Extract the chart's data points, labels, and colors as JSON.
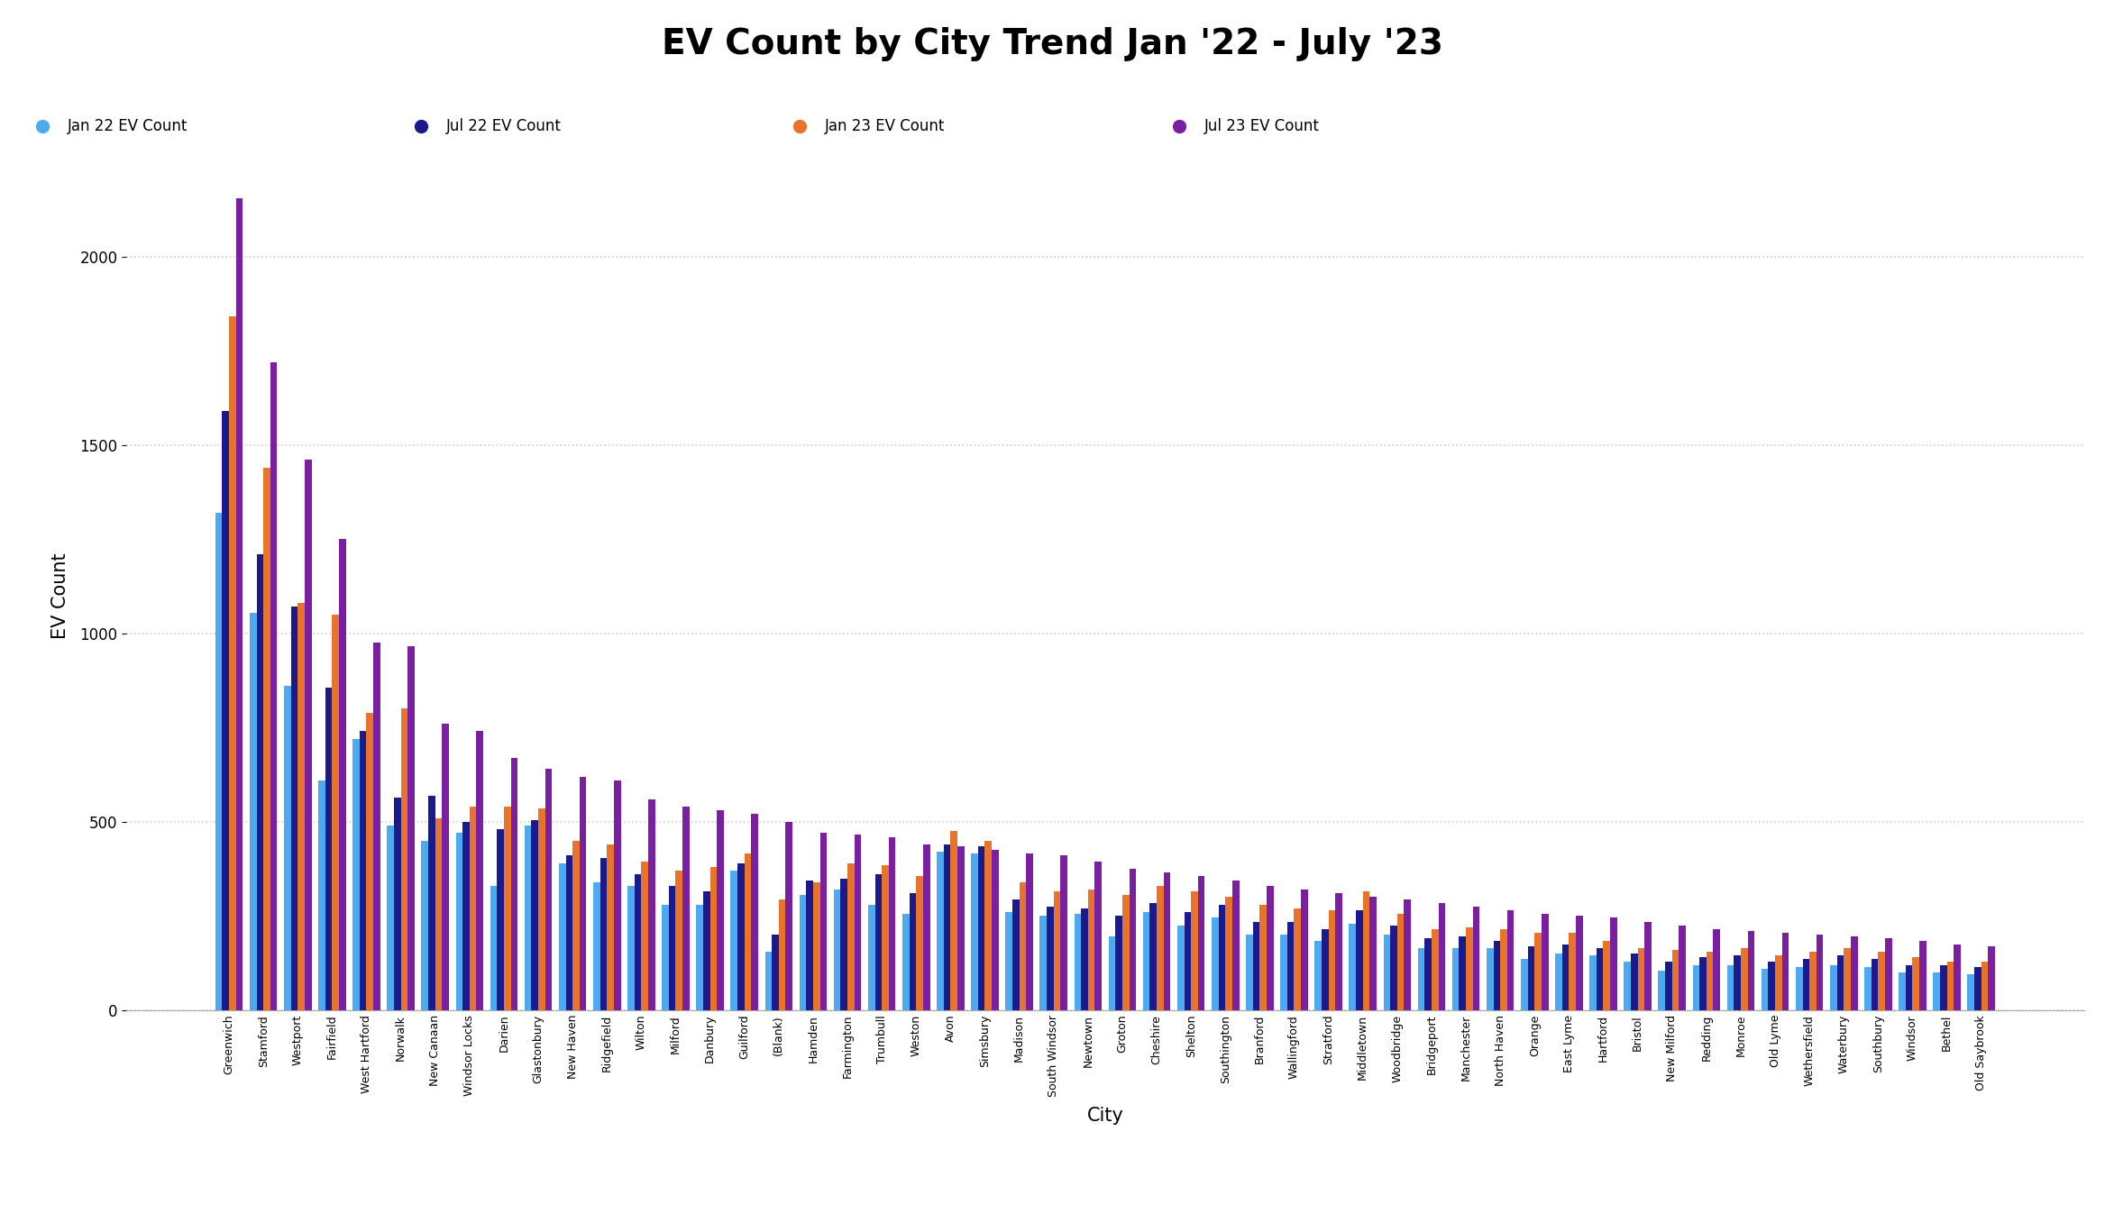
{
  "title": "EV Count by City Trend Jan '22 - July '23",
  "xlabel": "City",
  "ylabel": "EV Count",
  "title_bg_color": "#7EC8E3",
  "bar_colors": [
    "#4DAAEE",
    "#1A1A8C",
    "#E8732A",
    "#7B1FA2"
  ],
  "legend_labels": [
    "Jan 22 EV Count",
    "Jul 22 EV Count",
    "Jan 23 EV Count",
    "Jul 23 EV Count"
  ],
  "cities": [
    "Greenwich",
    "Stamford",
    "Westport",
    "Fairfield",
    "West Hartford",
    "Norwalk",
    "New Canaan",
    "Windsor Locks",
    "Darien",
    "Glastonbury",
    "New Haven",
    "Ridgefield",
    "Wilton",
    "Milford",
    "Danbury",
    "Guilford",
    "(Blank)",
    "Hamden",
    "Farmington",
    "Trumbull",
    "Weston",
    "Avon",
    "Simsbury",
    "Madison",
    "South Windsor",
    "Newtown",
    "Groton",
    "Cheshire",
    "Shelton",
    "Southington",
    "Branford",
    "Wallingford",
    "Stratford",
    "Middletown",
    "Woodbridge",
    "Bridgeport",
    "Manchester",
    "North Haven",
    "Orange",
    "East Lyme",
    "Hartford",
    "Bristol",
    "New Milford",
    "Redding",
    "Monroe",
    "Old Lyme",
    "Wethersfield",
    "Waterbury",
    "Southbury",
    "Windsor",
    "Bethel",
    "Old Saybrook"
  ],
  "jan22": [
    1320,
    1055,
    860,
    610,
    720,
    490,
    450,
    470,
    330,
    490,
    390,
    340,
    330,
    280,
    280,
    370,
    155,
    305,
    320,
    280,
    255,
    420,
    415,
    260,
    250,
    255,
    195,
    260,
    225,
    245,
    200,
    200,
    185,
    230,
    200,
    165,
    165,
    165,
    135,
    150,
    145,
    130,
    105,
    120,
    120,
    110,
    115,
    120,
    115,
    100,
    100,
    95
  ],
  "jul22": [
    1590,
    1210,
    1070,
    855,
    740,
    565,
    570,
    500,
    480,
    505,
    410,
    405,
    360,
    330,
    315,
    390,
    200,
    345,
    350,
    360,
    310,
    440,
    435,
    295,
    275,
    270,
    250,
    285,
    260,
    280,
    235,
    235,
    215,
    265,
    225,
    190,
    195,
    185,
    170,
    175,
    165,
    150,
    130,
    140,
    145,
    130,
    135,
    145,
    135,
    120,
    120,
    115
  ],
  "jan23": [
    1840,
    1440,
    1080,
    1050,
    790,
    800,
    510,
    540,
    540,
    535,
    450,
    440,
    395,
    370,
    380,
    415,
    295,
    340,
    390,
    385,
    355,
    475,
    450,
    340,
    315,
    320,
    305,
    330,
    315,
    300,
    280,
    270,
    265,
    315,
    255,
    215,
    220,
    215,
    205,
    205,
    185,
    165,
    160,
    155,
    165,
    145,
    155,
    165,
    155,
    140,
    130,
    130
  ],
  "jul23": [
    2155,
    1720,
    1460,
    1250,
    975,
    965,
    760,
    740,
    670,
    640,
    620,
    610,
    560,
    540,
    530,
    520,
    500,
    470,
    465,
    460,
    440,
    435,
    425,
    415,
    410,
    395,
    375,
    365,
    355,
    345,
    330,
    320,
    310,
    300,
    295,
    285,
    275,
    265,
    255,
    250,
    245,
    235,
    225,
    215,
    210,
    205,
    200,
    195,
    190,
    185,
    175,
    170
  ],
  "ylim": [
    0,
    2200
  ],
  "yticks": [
    0,
    500,
    1000,
    1500,
    2000
  ],
  "grid_color": "#CCCCCC",
  "background_color": "#FFFFFF"
}
